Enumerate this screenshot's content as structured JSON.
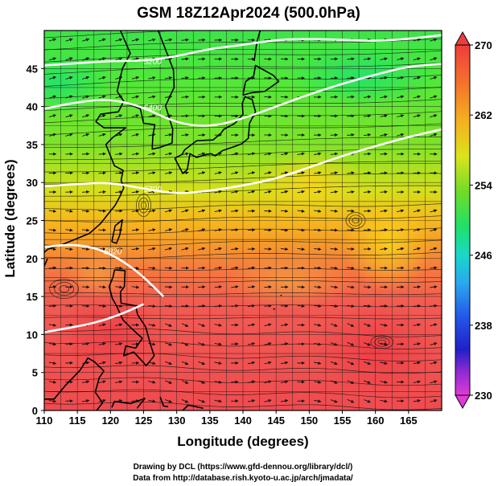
{
  "title": "GSM 18Z12Apr2024 (500.0hPa)",
  "credits": {
    "line1": "Drawing by DCL (https://www.gfd-dennou.org/library/dcl/)",
    "line2": "Data from http://database.rish.kyoto-u.ac.jp/arch/jmadata/"
  },
  "map": {
    "xlabel": "Longitude (degrees)",
    "ylabel": "Latitude  (degrees)",
    "lon_range": [
      110,
      170
    ],
    "lat_range": [
      0,
      50
    ],
    "lon_ticks": [
      "110",
      "115",
      "120",
      "125",
      "130",
      "135",
      "140",
      "145",
      "150",
      "155",
      "160",
      "165"
    ],
    "lat_ticks": [
      "0",
      "5",
      "10",
      "15",
      "20",
      "25",
      "30",
      "35",
      "40",
      "45"
    ],
    "contours": [
      {
        "label": "5200",
        "lons": [
          110,
          115,
          120,
          125,
          130,
          135,
          140,
          145,
          150,
          155,
          160,
          165,
          170
        ],
        "lats": [
          45.4,
          45.7,
          46.0,
          46.0,
          46.6,
          47.6,
          48.1,
          48.8,
          48.9,
          48.8,
          48.6,
          48.9,
          49.4
        ]
      },
      {
        "label": "5400",
        "lons": [
          110,
          115,
          120,
          125,
          130,
          135,
          140,
          145,
          150,
          155,
          160,
          165,
          170
        ],
        "lats": [
          39.7,
          40.6,
          41.0,
          39.9,
          37.8,
          37.3,
          38.4,
          40.0,
          41.6,
          43.0,
          44.2,
          45.3,
          45.6
        ]
      },
      {
        "label": "5700",
        "lons": [
          110,
          115,
          120,
          125,
          130,
          135,
          140,
          145,
          150,
          155,
          160,
          165,
          170
        ],
        "lats": [
          29.5,
          29.8,
          30.0,
          29.2,
          28.5,
          28.9,
          29.6,
          30.5,
          32.0,
          33.5,
          34.8,
          36.0,
          37.0
        ]
      },
      {
        "label": "5820",
        "lons": [
          110,
          113,
          116,
          119,
          122,
          125,
          128
        ],
        "lats": [
          21.5,
          21.8,
          21.7,
          21.0,
          19.6,
          17.6,
          15.0
        ]
      },
      {
        "label": "",
        "lons": [
          110,
          114,
          118,
          122,
          125
        ],
        "lats": [
          10.3,
          10.9,
          11.6,
          12.8,
          14.0
        ]
      }
    ]
  },
  "colorbar": {
    "ticks": [
      "270",
      "262",
      "254",
      "246",
      "238",
      "230"
    ],
    "range": [
      230,
      270
    ]
  }
}
